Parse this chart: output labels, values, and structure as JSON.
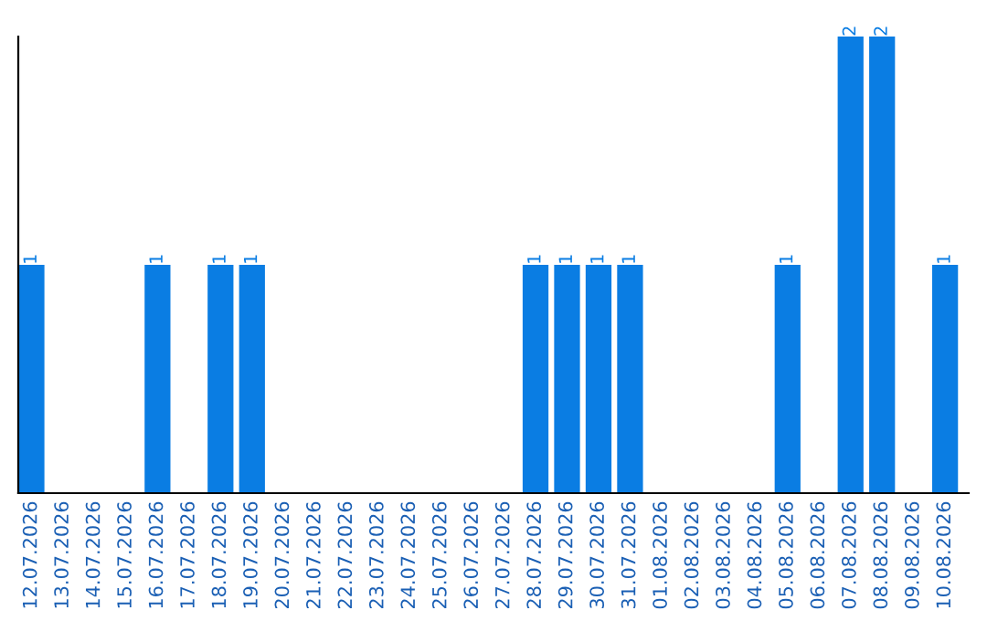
{
  "chart_data": {
    "type": "bar",
    "categories": [
      "12.07.2026",
      "13.07.2026",
      "14.07.2026",
      "15.07.2026",
      "16.07.2026",
      "17.07.2026",
      "18.07.2026",
      "19.07.2026",
      "20.07.2026",
      "21.07.2026",
      "22.07.2026",
      "23.07.2026",
      "24.07.2026",
      "25.07.2026",
      "26.07.2026",
      "27.07.2026",
      "28.07.2026",
      "29.07.2026",
      "30.07.2026",
      "31.07.2026",
      "01.08.2026",
      "02.08.2026",
      "03.08.2026",
      "04.08.2026",
      "05.08.2026",
      "06.08.2026",
      "07.08.2026",
      "08.08.2026",
      "09.08.2026",
      "10.08.2026"
    ],
    "values": [
      1,
      0,
      0,
      0,
      1,
      0,
      1,
      1,
      0,
      0,
      0,
      0,
      0,
      0,
      0,
      0,
      1,
      1,
      1,
      1,
      0,
      0,
      0,
      0,
      1,
      0,
      2,
      2,
      0,
      1
    ],
    "value_labels": [
      "1",
      null,
      null,
      null,
      "1",
      null,
      "1",
      "1",
      null,
      null,
      null,
      null,
      null,
      null,
      null,
      null,
      "1",
      "1",
      "1",
      "1",
      null,
      null,
      null,
      null,
      "1",
      null,
      "2",
      "2",
      null,
      "1"
    ],
    "color": "#0a7de3",
    "ylim": [
      0,
      2
    ],
    "grid": false,
    "legend": false
  }
}
